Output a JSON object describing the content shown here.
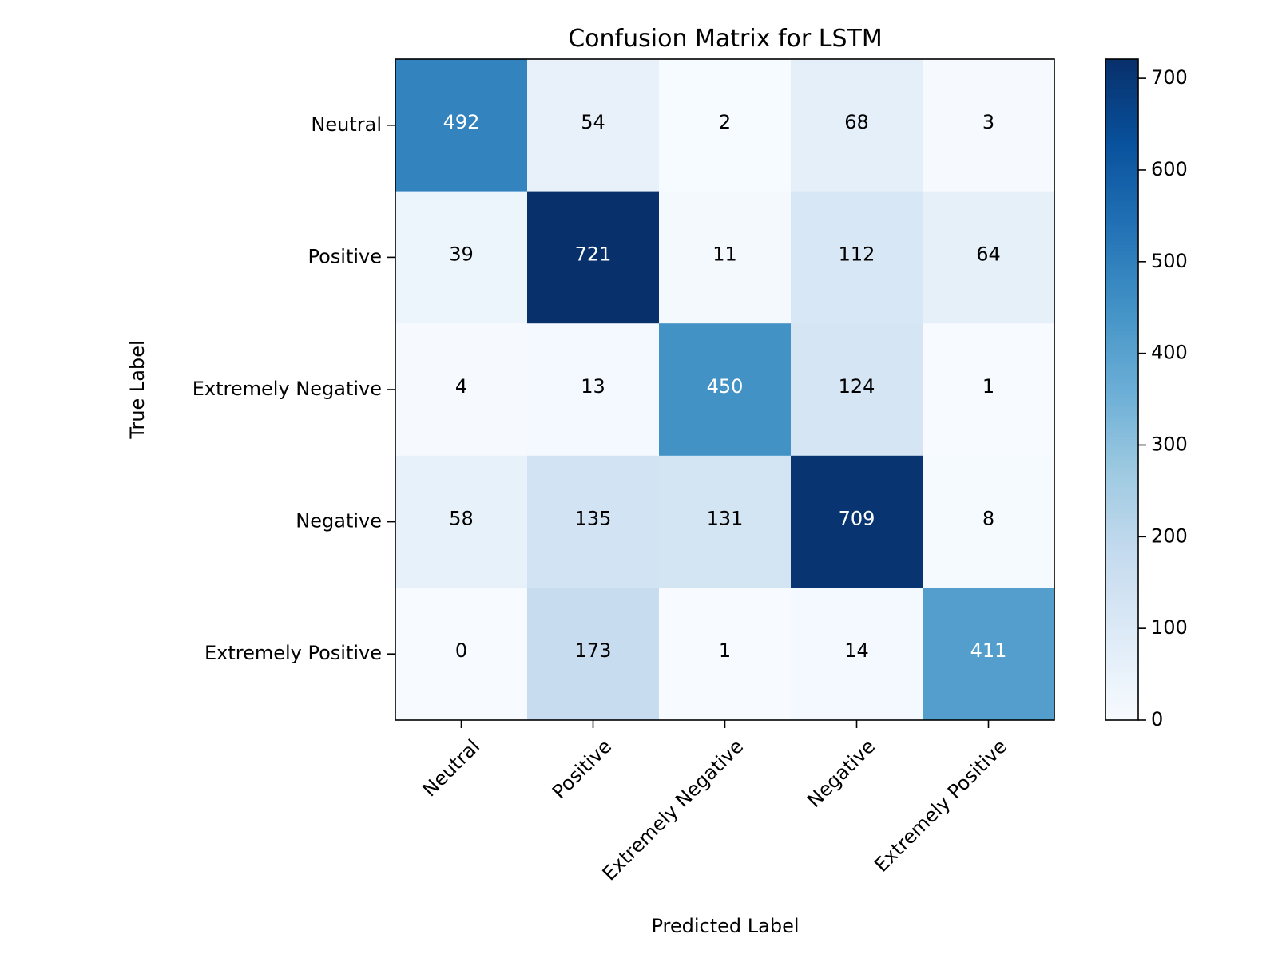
{
  "chart_data": {
    "type": "heatmap",
    "title": "Confusion Matrix for LSTM",
    "xlabel": "Predicted Label",
    "ylabel": "True Label",
    "x_categories": [
      "Neutral",
      "Positive",
      "Extremely Negative",
      "Negative",
      "Extremely Positive"
    ],
    "y_categories": [
      "Neutral",
      "Positive",
      "Extremely Negative",
      "Negative",
      "Extremely Positive"
    ],
    "values": [
      [
        492,
        54,
        2,
        68,
        3
      ],
      [
        39,
        721,
        11,
        112,
        64
      ],
      [
        4,
        13,
        450,
        124,
        1
      ],
      [
        58,
        135,
        131,
        709,
        8
      ],
      [
        0,
        173,
        1,
        14,
        411
      ]
    ],
    "colormap": "Blues",
    "color_range": [
      0,
      721
    ],
    "colorbar_ticks": [
      0,
      100,
      200,
      300,
      400,
      500,
      600,
      700
    ],
    "colorbar_tick_labels": [
      "0",
      "100",
      "200",
      "300",
      "400",
      "500",
      "600",
      "700"
    ],
    "annotation_colors": {
      "dark_text": "#000000",
      "light_text": "#ffffff"
    },
    "grid": false,
    "legend": "colorbar-right"
  }
}
